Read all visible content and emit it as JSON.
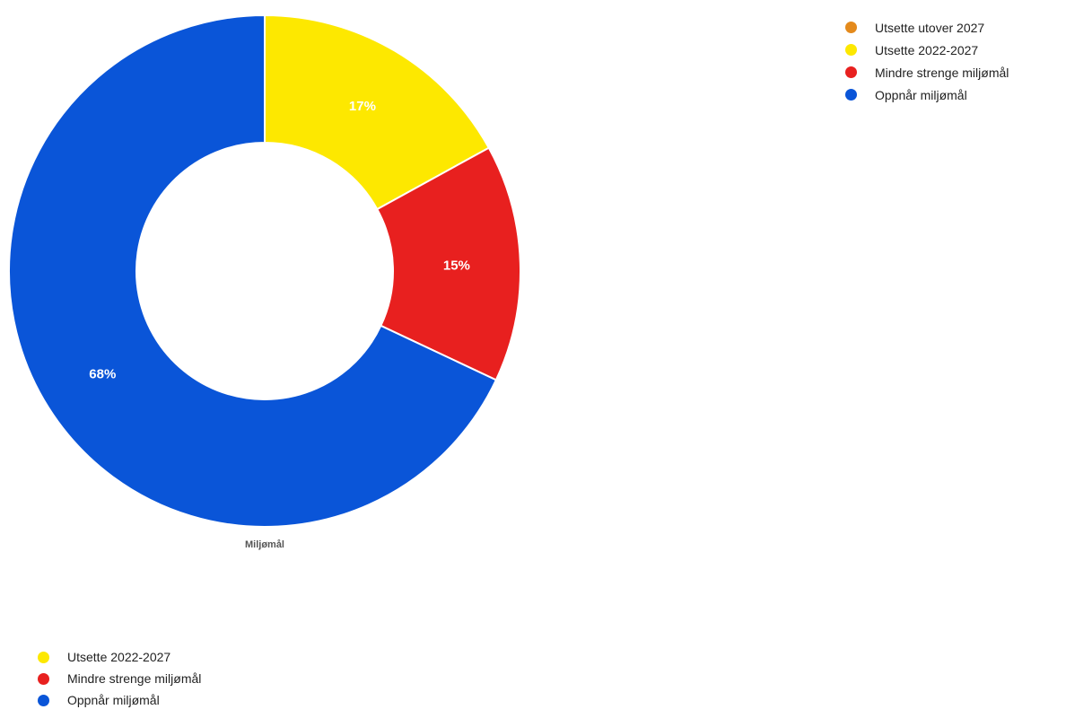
{
  "chart_data": {
    "type": "pie",
    "variant": "donut",
    "title": "Miljømål",
    "slices": [
      {
        "label": "Utsette utover 2027",
        "value": 0,
        "percent_label": "",
        "color": "#e48a1c"
      },
      {
        "label": "Utsette 2022-2027",
        "value": 17,
        "percent_label": "17%",
        "color": "#fde800"
      },
      {
        "label": "Mindre strenge miljømål",
        "value": 15,
        "percent_label": "15%",
        "color": "#e8201f"
      },
      {
        "label": "Oppnår miljømål",
        "value": 68,
        "percent_label": "68%",
        "color": "#0a55d8"
      }
    ],
    "legend_placement": "top-right"
  },
  "legend_top": [
    {
      "label": "Utsette utover 2027",
      "color": "#e48a1c"
    },
    {
      "label": "Utsette 2022-2027",
      "color": "#fde800"
    },
    {
      "label": "Mindre strenge miljømål",
      "color": "#e8201f"
    },
    {
      "label": "Oppnår miljømål",
      "color": "#0a55d8"
    }
  ],
  "legend_bottom": [
    {
      "label": "Utsette 2022-2027",
      "color": "#fde800"
    },
    {
      "label": "Mindre strenge miljømål",
      "color": "#e8201f"
    },
    {
      "label": "Oppnår miljømål",
      "color": "#0a55d8"
    }
  ]
}
